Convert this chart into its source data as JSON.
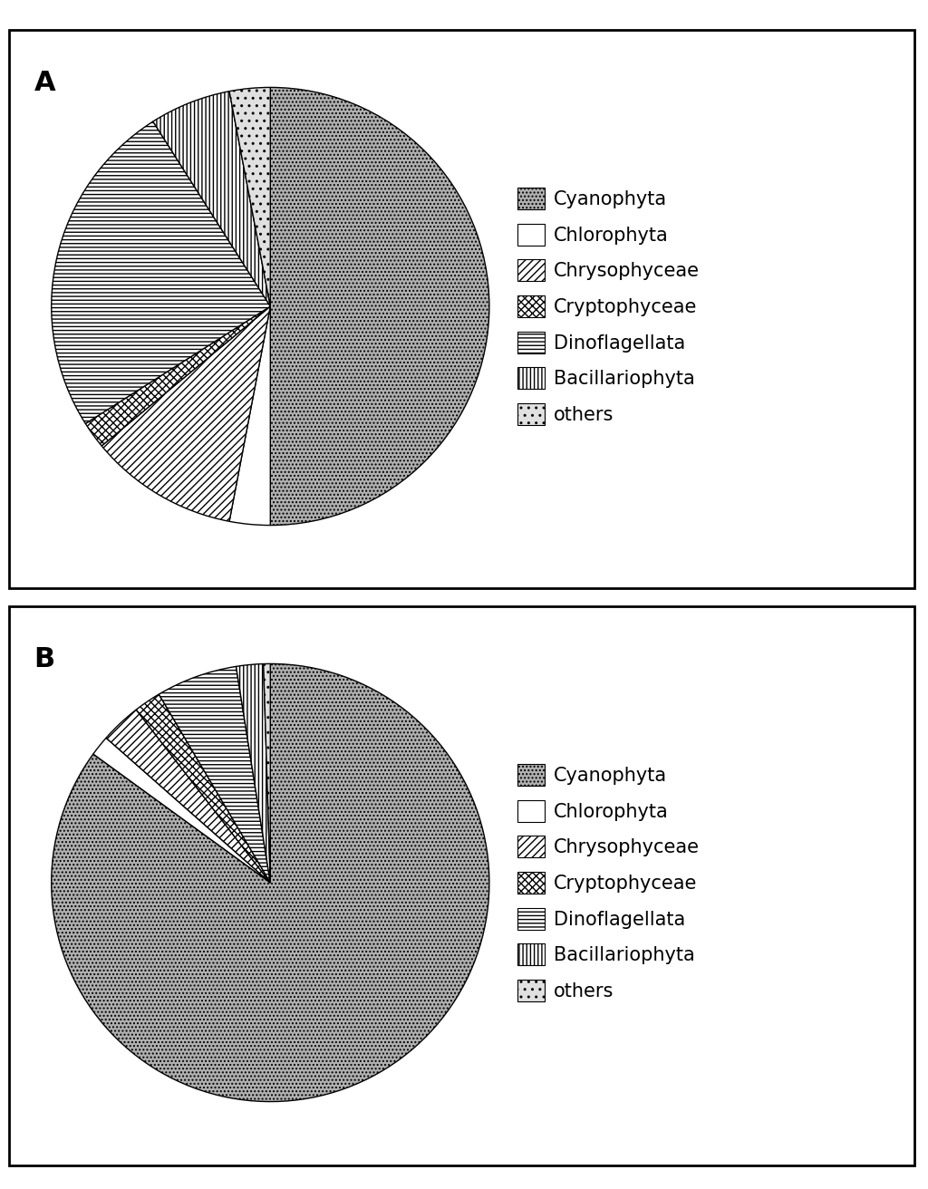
{
  "panel_A": {
    "label": "A",
    "values": [
      50,
      3,
      11,
      2,
      25,
      6,
      3
    ],
    "start_angle": 90,
    "labels": [
      "Cyanophyta",
      "Chlorophyta",
      "Chrysophyceae",
      "Cryptophyceae",
      "Dinoflagellata",
      "Bacillariophyta",
      "others"
    ]
  },
  "panel_B": {
    "label": "B",
    "values": [
      85,
      1.5,
      3,
      2,
      6,
      2,
      0.5
    ],
    "start_angle": 90,
    "labels": [
      "Cyanophyta",
      "Chlorophyta",
      "Chrysophyceae",
      "Cryptophyceae",
      "Dinoflagellata",
      "Bacillariophyta",
      "others"
    ]
  },
  "legend_labels": [
    "Cyanophyta",
    "Chlorophyta",
    "Chrysophyceae",
    "Cryptophyceae",
    "Dinoflagellata",
    "Bacillariophyta",
    "others"
  ],
  "background_color": "#ffffff",
  "edge_color": "#000000",
  "label_fontsize": 20,
  "legend_fontsize": 15
}
